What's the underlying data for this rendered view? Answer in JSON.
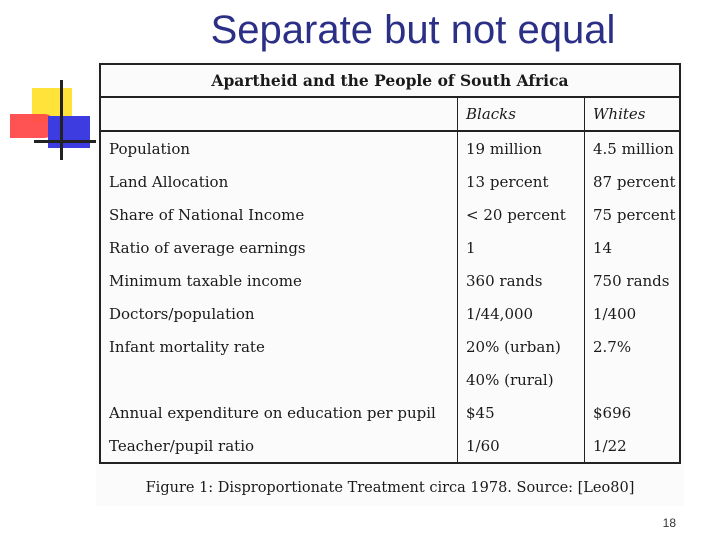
{
  "slide": {
    "title": "Separate but not equal",
    "page_number": "18"
  },
  "document": {
    "table_title": "Apartheid and the People of South Africa",
    "columns": [
      "",
      "Blacks",
      "Whites"
    ],
    "rows": [
      {
        "label": "Population",
        "blacks": "19 million",
        "whites": "4.5 million"
      },
      {
        "label": "Land Allocation",
        "blacks": "13 percent",
        "whites": "87 percent"
      },
      {
        "label": "Share of National Income",
        "blacks": "< 20 percent",
        "whites": "75 percent"
      },
      {
        "label": "Ratio of average earnings",
        "blacks": "1",
        "whites": "14"
      },
      {
        "label": "Minimum taxable income",
        "blacks": "360 rands",
        "whites": "750 rands"
      },
      {
        "label": "Doctors/population",
        "blacks": "1/44,000",
        "whites": "1/400"
      },
      {
        "label": "Infant mortality rate",
        "blacks": "20% (urban)",
        "whites": "2.7%"
      },
      {
        "label": "",
        "blacks": "40% (rural)",
        "whites": ""
      },
      {
        "label": "Annual expenditure on education per pupil",
        "blacks": "$45",
        "whites": "$696"
      },
      {
        "label": "Teacher/pupil ratio",
        "blacks": "1/60",
        "whites": "1/22"
      }
    ],
    "caption": "Figure 1:  Disproportionate Treatment circa 1978.  Source: [Leo80]"
  },
  "colors": {
    "title": "#2b2f86",
    "logo_yellow": "#ffe23a",
    "logo_red": "#ff4a4a",
    "logo_blue": "#3c3ce0"
  }
}
